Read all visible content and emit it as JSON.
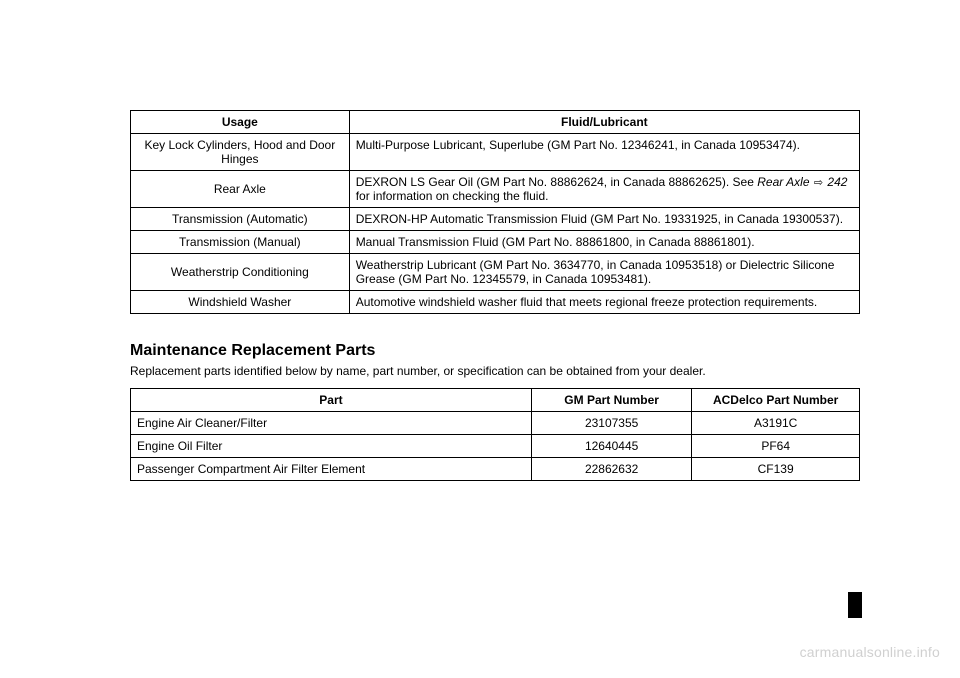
{
  "table1": {
    "headers": [
      "Usage",
      "Fluid/Lubricant"
    ],
    "rows": [
      {
        "usage": "Key Lock Cylinders, Hood and Door Hinges",
        "fluid_pre": "Multi-Purpose Lubricant, Superlube (GM Part No. 12346241, in Canada 10953474)."
      },
      {
        "usage": "Rear Axle",
        "fluid_pre": "DEXRON LS Gear Oil (GM Part No. 88862624, in Canada 88862625). See ",
        "ref": "Rear Axle",
        "page": "242",
        "fluid_post": " for information on checking the fluid."
      },
      {
        "usage": "Transmission (Automatic)",
        "fluid_pre": "DEXRON-HP Automatic Transmission Fluid (GM Part No. 19331925, in Canada 19300537)."
      },
      {
        "usage": "Transmission (Manual)",
        "fluid_pre": "Manual Transmission Fluid (GM Part No. 88861800, in Canada 88861801)."
      },
      {
        "usage": "Weatherstrip Conditioning",
        "fluid_pre": "Weatherstrip Lubricant (GM Part No. 3634770, in Canada 10953518) or Dielectric Silicone Grease (GM Part No. 12345579, in Canada 10953481)."
      },
      {
        "usage": "Windshield Washer",
        "fluid_pre": "Automotive windshield washer fluid that meets regional freeze protection requirements."
      }
    ]
  },
  "section": {
    "heading": "Maintenance Replacement Parts",
    "sub": "Replacement parts identified below by name, part number, or specification can be obtained from your dealer."
  },
  "table2": {
    "headers": [
      "Part",
      "GM Part Number",
      "ACDelco Part Number"
    ],
    "rows": [
      {
        "part": "Engine Air Cleaner/Filter",
        "gm": "23107355",
        "ac": "A3191C"
      },
      {
        "part": "Engine Oil Filter",
        "gm": "12640445",
        "ac": "PF64"
      },
      {
        "part": "Passenger Compartment Air Filter Element",
        "gm": "22862632",
        "ac": "CF139"
      }
    ]
  },
  "watermark": "carmanualsonline.info",
  "arrow_glyph": "⇨"
}
